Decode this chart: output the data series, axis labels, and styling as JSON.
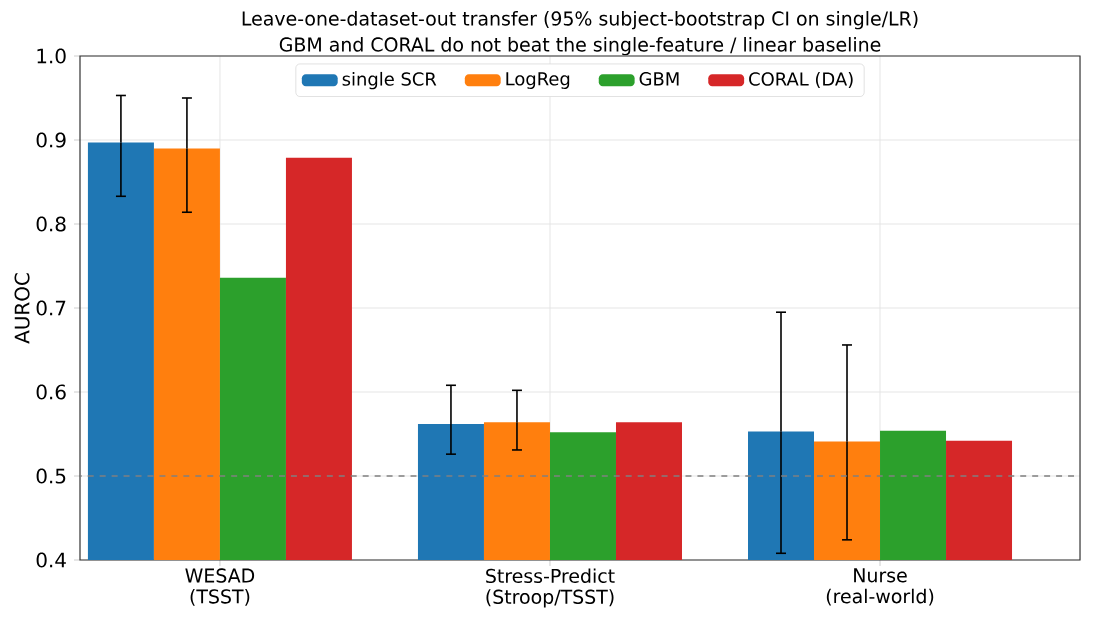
{
  "chart_data": {
    "type": "bar",
    "title": "Leave-one-dataset-out transfer (95% subject-bootstrap CI on single/LR)",
    "subtitle": "GBM and CORAL do not beat the single-feature / linear baseline",
    "ylabel": "AUROC",
    "categories": [
      "WESAD (TSST)",
      "Stress-Predict (Stroop/TSST)",
      "Nurse (real-world)"
    ],
    "series": [
      {
        "name": "single SCR",
        "color": "#1f77b4",
        "values": [
          0.897,
          0.562,
          0.553
        ],
        "errors": [
          [
            0.833,
            0.953
          ],
          [
            0.526,
            0.608
          ],
          [
            0.408,
            0.695
          ]
        ]
      },
      {
        "name": "LogReg",
        "color": "#ff7f0e",
        "values": [
          0.89,
          0.564,
          0.541
        ],
        "errors": [
          [
            0.814,
            0.95
          ],
          [
            0.531,
            0.602
          ],
          [
            0.424,
            0.656
          ]
        ]
      },
      {
        "name": "GBM",
        "color": "#2ca02c",
        "values": [
          0.736,
          0.552,
          0.554
        ]
      },
      {
        "name": "CORAL (DA)",
        "color": "#d62728",
        "values": [
          0.879,
          0.564,
          0.542
        ]
      }
    ],
    "ylim": [
      0.4,
      1.0
    ],
    "yticks": [
      0.4,
      0.5,
      0.6,
      0.7,
      0.8,
      0.9,
      {
        "value": 1.0,
        "label": "1.0"
      }
    ],
    "ref_lines": [
      {
        "axis": "y",
        "value": 0.5,
        "color": "#808080",
        "line_style": "dashed"
      }
    ],
    "grid": true,
    "legend": "top"
  }
}
